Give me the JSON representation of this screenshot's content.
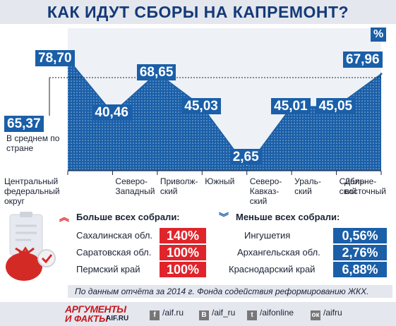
{
  "title": "КАК ИДУТ СБОРЫ НА КАПРЕМОНТ?",
  "chart_data": {
    "type": "area",
    "unit": "%",
    "categories": [
      "Центральный федеральный округ",
      "Северо-Западный",
      "Приволжский",
      "Южный",
      "Северо-Кавказский",
      "Уральский",
      "Сибирский",
      "Дальневосточный"
    ],
    "category_labels": [
      [
        "Центральный",
        "федеральный",
        "округ"
      ],
      [
        "Северо-",
        "Западный"
      ],
      [
        "Приволж-",
        "ский"
      ],
      [
        "Южный"
      ],
      [
        "Северо-",
        "Кавказ-",
        "ский"
      ],
      [
        "Ураль-",
        "ский"
      ],
      [
        "Сибир-",
        "ский"
      ],
      [
        "Дальне-",
        "восточный"
      ]
    ],
    "values": [
      78.7,
      40.46,
      68.65,
      45.03,
      2.65,
      45.01,
      45.05,
      67.96
    ],
    "value_labels": [
      "78,70",
      "40,46",
      "68,65",
      "45,03",
      "2,65",
      "45,01",
      "45,05",
      "67,96"
    ],
    "average": 65.37,
    "average_label": "65,37",
    "average_caption": "В среднем по стране",
    "ylim": [
      0,
      100
    ],
    "colors": {
      "fill": "#1a5fa8",
      "label_bg": "#1a5fa8",
      "area_bg": "#eef1f6"
    }
  },
  "top": {
    "heading": "Больше всех собрали:",
    "rows": [
      {
        "name": "Сахалинская обл.",
        "value": "140%"
      },
      {
        "name": "Саратовская обл.",
        "value": "100%"
      },
      {
        "name": "Пермский край",
        "value": "100%"
      }
    ]
  },
  "bottom": {
    "heading": "Меньше всех собрали:",
    "rows": [
      {
        "name": "Ингушетия",
        "value": "0,56%"
      },
      {
        "name": "Архангельская обл.",
        "value": "2,76%"
      },
      {
        "name": "Краснодарский край",
        "value": "6,88%"
      }
    ]
  },
  "source": "По данным отчёта за 2014 г. Фонда содействия реформированию ЖКХ.",
  "footer": {
    "logo_line1": "АРГУМЕНТЫ",
    "logo_line2": "И ФАКТЫ",
    "logo_domain": "AIF.RU",
    "links": [
      {
        "icon": "facebook-icon",
        "glyph": "f",
        "text": "/aif.ru"
      },
      {
        "icon": "vk-icon",
        "glyph": "В",
        "text": "/aif_ru"
      },
      {
        "icon": "twitter-icon",
        "glyph": "t",
        "text": "/aifonline"
      },
      {
        "icon": "odnoklassniki-icon",
        "glyph": "ок",
        "text": "/aifru"
      }
    ]
  },
  "colors": {
    "red": "#e0242b",
    "blue": "#1a5fa8",
    "title": "#143a78"
  }
}
